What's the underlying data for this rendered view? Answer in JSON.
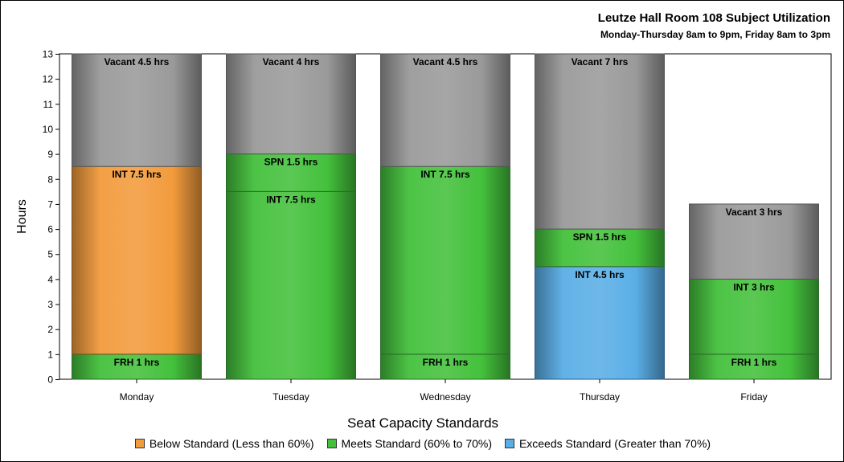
{
  "header": {
    "title": "Leutze Hall Room 108 Subject Utilization",
    "subtitle": "Monday-Thursday 8am to 9pm, Friday 8am to 3pm"
  },
  "legend": {
    "title": "Seat Capacity Standards",
    "items": [
      {
        "label": "Below Standard (Less than 60%)",
        "color": "#f29b3c"
      },
      {
        "label": "Meets Standard (60% to 70%)",
        "color": "#44c13c"
      },
      {
        "label": "Exceeds Standard (Greater than 70%)",
        "color": "#5aaee6"
      }
    ]
  },
  "colors": {
    "below": "#f29b3c",
    "meets": "#44c13c",
    "exceeds": "#5aaee6",
    "vacant": "#9a9a9a"
  },
  "chart_data": {
    "type": "bar",
    "stacked": true,
    "title": "Leutze Hall Room 108 Subject Utilization",
    "subtitle": "Monday-Thursday 8am to 9pm, Friday 8am to 3pm",
    "xlabel": "",
    "ylabel": "Hours",
    "ylim": [
      0,
      13
    ],
    "yticks": [
      0,
      1,
      2,
      3,
      4,
      5,
      6,
      7,
      8,
      9,
      10,
      11,
      12,
      13
    ],
    "categories": [
      "Monday",
      "Tuesday",
      "Wednesday",
      "Thursday",
      "Friday"
    ],
    "bars": [
      {
        "category": "Monday",
        "segments": [
          {
            "label": "FRH 1 hrs",
            "value": 1,
            "kind": "meets"
          },
          {
            "label": "INT 7.5 hrs",
            "value": 7.5,
            "kind": "below"
          },
          {
            "label": "Vacant 4.5 hrs",
            "value": 4.5,
            "kind": "vacant"
          }
        ]
      },
      {
        "category": "Tuesday",
        "segments": [
          {
            "label": "INT 7.5 hrs",
            "value": 7.5,
            "kind": "meets"
          },
          {
            "label": "SPN 1.5 hrs",
            "value": 1.5,
            "kind": "meets"
          },
          {
            "label": "Vacant 4 hrs",
            "value": 4,
            "kind": "vacant"
          }
        ]
      },
      {
        "category": "Wednesday",
        "segments": [
          {
            "label": "FRH 1 hrs",
            "value": 1,
            "kind": "meets"
          },
          {
            "label": "INT 7.5 hrs",
            "value": 7.5,
            "kind": "meets"
          },
          {
            "label": "Vacant 4.5 hrs",
            "value": 4.5,
            "kind": "vacant"
          }
        ]
      },
      {
        "category": "Thursday",
        "segments": [
          {
            "label": "INT 4.5 hrs",
            "value": 4.5,
            "kind": "exceeds"
          },
          {
            "label": "SPN 1.5 hrs",
            "value": 1.5,
            "kind": "meets"
          },
          {
            "label": "Vacant 7 hrs",
            "value": 7,
            "kind": "vacant"
          }
        ]
      },
      {
        "category": "Friday",
        "segments": [
          {
            "label": "FRH 1 hrs",
            "value": 1,
            "kind": "meets"
          },
          {
            "label": "INT 3 hrs",
            "value": 3,
            "kind": "meets"
          },
          {
            "label": "Vacant 3 hrs",
            "value": 3,
            "kind": "vacant"
          }
        ]
      }
    ],
    "legend_position": "bottom",
    "grid": false
  }
}
